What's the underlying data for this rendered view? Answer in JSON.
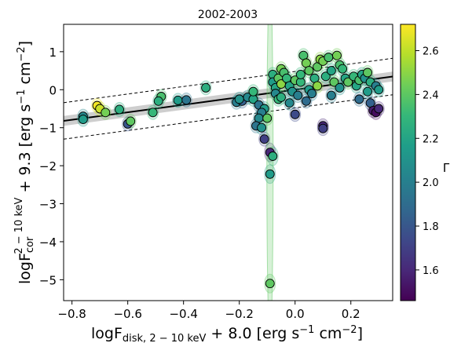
{
  "chart_data": {
    "type": "scatter",
    "title": "2002-2003",
    "xlabel": "logF_disk,2−10keV + 8.0 [erg s^−1 cm^−2]",
    "ylabel": "logF_cor^2−10keV + 9.3 [erg s^−1 cm^−2]",
    "xlim": [
      -0.83,
      0.35
    ],
    "ylim": [
      -5.55,
      1.72
    ],
    "x_ticks": [
      -0.8,
      -0.6,
      -0.4,
      -0.2,
      0.0,
      0.2
    ],
    "x_tick_labels": [
      "−0.8",
      "−0.6",
      "−0.4",
      "−0.2",
      "0.0",
      "0.2"
    ],
    "y_ticks": [
      -5,
      -4,
      -3,
      -2,
      -1,
      0,
      1
    ],
    "y_tick_labels": [
      "−5",
      "−4",
      "−3",
      "−2",
      "−1",
      "0",
      "1"
    ],
    "grid": false,
    "colorbar": {
      "label": "Γ",
      "range": [
        1.46,
        2.72
      ],
      "ticks": [
        1.6,
        1.8,
        2.0,
        2.2,
        2.4,
        2.6
      ],
      "tick_labels": [
        "1.6",
        "1.8",
        "2.0",
        "2.2",
        "2.4",
        "2.6"
      ],
      "colormap": "viridis",
      "colors": [
        "#440154",
        "#482878",
        "#3e4989",
        "#31688e",
        "#26828e",
        "#1f9e89",
        "#35b779",
        "#6ece58",
        "#b5de2b",
        "#fde725"
      ]
    },
    "fit": {
      "slope": 0.99,
      "intercept": 0.0,
      "line_color": "#000000",
      "band_color": "#bdbdbd",
      "band_halfwidth": 0.13,
      "scatter_offset": 0.48
    },
    "points": [
      {
        "x": -0.71,
        "y": -0.42,
        "g": 2.7
      },
      {
        "x": -0.7,
        "y": -0.5,
        "g": 2.62
      },
      {
        "x": -0.68,
        "y": -0.6,
        "g": 2.45
      },
      {
        "x": -0.63,
        "y": -0.52,
        "g": 2.25
      },
      {
        "x": -0.76,
        "y": -0.7,
        "g": 2.05
      },
      {
        "x": -0.76,
        "y": -0.78,
        "g": 2.15
      },
      {
        "x": -0.6,
        "y": -0.9,
        "g": 1.8
      },
      {
        "x": -0.59,
        "y": -0.83,
        "g": 2.4
      },
      {
        "x": -0.48,
        "y": -0.18,
        "g": 2.35
      },
      {
        "x": -0.49,
        "y": -0.3,
        "g": 2.25
      },
      {
        "x": -0.42,
        "y": -0.28,
        "g": 2.15
      },
      {
        "x": -0.39,
        "y": -0.27,
        "g": 1.95
      },
      {
        "x": -0.51,
        "y": -0.6,
        "g": 2.3
      },
      {
        "x": -0.32,
        "y": 0.05,
        "g": 2.25
      },
      {
        "x": -0.21,
        "y": -0.33,
        "g": 2.0
      },
      {
        "x": -0.19,
        "y": -0.3,
        "g": 1.85
      },
      {
        "x": -0.17,
        "y": -0.2,
        "g": 2.05
      },
      {
        "x": -0.15,
        "y": -0.25,
        "g": 2.2
      },
      {
        "x": -0.13,
        "y": -0.4,
        "g": 1.95
      },
      {
        "x": -0.11,
        "y": -0.5,
        "g": 2.15
      },
      {
        "x": -0.12,
        "y": -0.6,
        "g": 2.0
      },
      {
        "x": -0.13,
        "y": -0.75,
        "g": 2.05
      },
      {
        "x": -0.14,
        "y": -0.95,
        "g": 1.95
      },
      {
        "x": -0.12,
        "y": -1.0,
        "g": 2.1
      },
      {
        "x": -0.11,
        "y": -1.3,
        "g": 1.7
      },
      {
        "x": -0.09,
        "y": -1.65,
        "g": 1.6
      },
      {
        "x": -0.08,
        "y": -1.75,
        "g": 2.25
      },
      {
        "x": -0.09,
        "y": -2.22,
        "g": 2.15
      },
      {
        "x": -0.09,
        "y": -5.1,
        "g": 2.4
      },
      {
        "x": -0.1,
        "y": -0.75,
        "g": 2.4
      },
      {
        "x": -0.08,
        "y": 0.4,
        "g": 2.25
      },
      {
        "x": -0.08,
        "y": 0.2,
        "g": 2.15
      },
      {
        "x": -0.07,
        "y": 0.05,
        "g": 2.2
      },
      {
        "x": -0.07,
        "y": -0.1,
        "g": 2.05
      },
      {
        "x": -0.06,
        "y": -0.25,
        "g": 2.3
      },
      {
        "x": -0.06,
        "y": 0.3,
        "g": 2.4
      },
      {
        "x": -0.05,
        "y": 0.55,
        "g": 2.45
      },
      {
        "x": -0.05,
        "y": 0.15,
        "g": 2.5
      },
      {
        "x": -0.04,
        "y": 0.45,
        "g": 2.35
      },
      {
        "x": -0.03,
        "y": 0.3,
        "g": 2.3
      },
      {
        "x": -0.02,
        "y": 0.1,
        "g": 2.2
      },
      {
        "x": -0.01,
        "y": -0.05,
        "g": 2.1
      },
      {
        "x": 0.0,
        "y": 0.25,
        "g": 2.4
      },
      {
        "x": 0.01,
        "y": -0.15,
        "g": 2.0
      },
      {
        "x": 0.02,
        "y": 0.2,
        "g": 2.3
      },
      {
        "x": 0.03,
        "y": 0.9,
        "g": 2.35
      },
      {
        "x": 0.04,
        "y": 0.7,
        "g": 2.45
      },
      {
        "x": 0.05,
        "y": 0.5,
        "g": 2.4
      },
      {
        "x": 0.05,
        "y": 0.0,
        "g": 2.15
      },
      {
        "x": 0.06,
        "y": -0.1,
        "g": 2.0
      },
      {
        "x": 0.07,
        "y": 0.3,
        "g": 2.25
      },
      {
        "x": 0.08,
        "y": 0.6,
        "g": 2.4
      },
      {
        "x": 0.08,
        "y": 0.1,
        "g": 2.5
      },
      {
        "x": 0.09,
        "y": 0.8,
        "g": 2.5
      },
      {
        "x": 0.1,
        "y": 0.75,
        "g": 2.45
      },
      {
        "x": 0.11,
        "y": 0.35,
        "g": 2.25
      },
      {
        "x": 0.12,
        "y": 0.85,
        "g": 2.35
      },
      {
        "x": 0.13,
        "y": 0.5,
        "g": 2.2
      },
      {
        "x": 0.14,
        "y": 0.2,
        "g": 2.4
      },
      {
        "x": 0.15,
        "y": 0.9,
        "g": 2.45
      },
      {
        "x": 0.16,
        "y": 0.65,
        "g": 2.35
      },
      {
        "x": 0.17,
        "y": 0.55,
        "g": 2.3
      },
      {
        "x": 0.18,
        "y": 0.3,
        "g": 2.2
      },
      {
        "x": 0.19,
        "y": 0.2,
        "g": 2.4
      },
      {
        "x": 0.21,
        "y": 0.35,
        "g": 2.3
      },
      {
        "x": 0.22,
        "y": 0.1,
        "g": 2.2
      },
      {
        "x": 0.23,
        "y": 0.25,
        "g": 2.35
      },
      {
        "x": 0.23,
        "y": -0.25,
        "g": 1.9
      },
      {
        "x": 0.24,
        "y": 0.4,
        "g": 2.2
      },
      {
        "x": 0.25,
        "y": 0.3,
        "g": 2.1
      },
      {
        "x": 0.26,
        "y": 0.45,
        "g": 2.4
      },
      {
        "x": 0.26,
        "y": -0.05,
        "g": 2.15
      },
      {
        "x": 0.27,
        "y": 0.2,
        "g": 2.25
      },
      {
        "x": 0.27,
        "y": -0.35,
        "g": 1.85
      },
      {
        "x": 0.28,
        "y": -0.55,
        "g": 1.55
      },
      {
        "x": 0.29,
        "y": -0.6,
        "g": 1.5
      },
      {
        "x": 0.3,
        "y": -0.5,
        "g": 1.6
      },
      {
        "x": 0.29,
        "y": 0.1,
        "g": 2.0
      },
      {
        "x": 0.3,
        "y": 0.0,
        "g": 2.15
      },
      {
        "x": 0.1,
        "y": -0.95,
        "g": 1.6
      },
      {
        "x": 0.1,
        "y": -1.02,
        "g": 1.7
      },
      {
        "x": 0.0,
        "y": -0.65,
        "g": 1.75
      },
      {
        "x": -0.05,
        "y": -0.2,
        "g": 2.25
      },
      {
        "x": -0.02,
        "y": -0.35,
        "g": 2.05
      },
      {
        "x": 0.04,
        "y": -0.3,
        "g": 1.9
      },
      {
        "x": 0.13,
        "y": -0.15,
        "g": 2.0
      },
      {
        "x": 0.16,
        "y": 0.05,
        "g": 2.1
      },
      {
        "x": -0.2,
        "y": -0.25,
        "g": 2.1
      },
      {
        "x": -0.15,
        "y": -0.05,
        "g": 2.3
      },
      {
        "x": 0.02,
        "y": 0.4,
        "g": 2.3
      }
    ]
  }
}
